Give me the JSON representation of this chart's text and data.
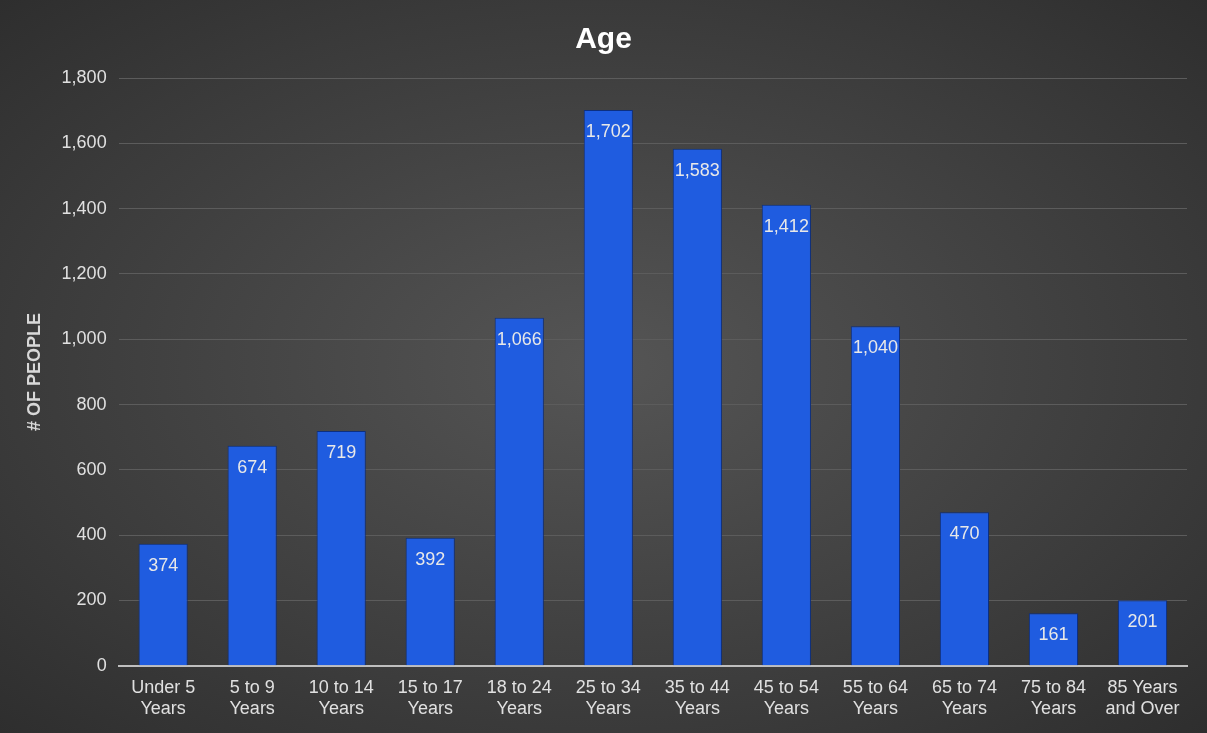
{
  "chart_data": {
    "type": "bar",
    "title": "Age",
    "ylabel": "# OF PEOPLE",
    "categories": [
      "Under 5 Years",
      "5 to 9 Years",
      "10 to 14 Years",
      "15 to 17 Years",
      "18 to 24 Years",
      "25 to 34 Years",
      "35 to 44 Years",
      "45 to 54 Years",
      "55 to 64 Years",
      "65 to 74 Years",
      "75 to 84 Years",
      "85 Years and Over"
    ],
    "values": [
      374,
      674,
      719,
      392,
      1066,
      1702,
      1583,
      1412,
      1040,
      470,
      161,
      201
    ],
    "color": "#1f5ce0",
    "ylim": [
      0,
      1800
    ],
    "yticks": [
      0,
      200,
      400,
      600,
      800,
      {
        "value": 1000,
        "label": "1,000"
      },
      {
        "value": 1200,
        "label": "1,200"
      },
      {
        "value": 1400,
        "label": "1,400"
      },
      {
        "value": 1600,
        "label": "1,600"
      },
      {
        "value": 1800,
        "label": "1,800"
      }
    ],
    "value_labels": [
      "374",
      "674",
      "719",
      "392",
      "1,066",
      "1,702",
      "1,583",
      "1,412",
      "1,040",
      "470",
      "161",
      "201"
    ],
    "grid": "y",
    "legend": false
  }
}
